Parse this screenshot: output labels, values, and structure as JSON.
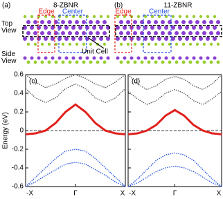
{
  "panels": [
    {
      "label": "(a)",
      "title": "8-ZBNR"
    },
    {
      "label": "(b)",
      "title": "11-ZBNR"
    }
  ],
  "labels": {
    "edge": "Edge",
    "center": "Center",
    "top_view": "Top\nView",
    "side_view": "Side\nView",
    "unit_cell": "Unit Cell"
  },
  "chart_data": [
    {
      "type": "band",
      "title": "(c)",
      "y_label": "Energy (eV)",
      "x": [
        -1,
        -0.8,
        -0.6,
        -0.4,
        -0.2,
        0,
        0.2,
        0.4,
        0.6,
        0.8,
        1
      ],
      "xlim": [
        -1,
        1
      ],
      "xticks": [
        {
          "value": -1,
          "label": "-X"
        },
        {
          "value": 0,
          "label": "Γ"
        },
        {
          "value": 1,
          "label": "X"
        }
      ],
      "ylim": [
        -0.6,
        0.6
      ],
      "yticks": [
        0.6,
        0.4,
        0.2,
        0.0,
        -0.2,
        -0.4,
        -0.6
      ],
      "series": [
        {
          "color": "#e0201c",
          "values": [
            -0.04,
            -0.03,
            0.0,
            0.08,
            0.2,
            0.28,
            0.2,
            0.08,
            0.0,
            -0.03,
            -0.04
          ]
        },
        {
          "color": "#2050e0",
          "values": [
            -0.6,
            -0.5,
            -0.4,
            -0.3,
            -0.22,
            -0.2,
            -0.22,
            -0.3,
            -0.4,
            -0.5,
            -0.6
          ]
        },
        {
          "color": "#2050e0",
          "values": [
            -0.6,
            -0.55,
            -0.48,
            -0.42,
            -0.36,
            -0.34,
            -0.36,
            -0.42,
            -0.48,
            -0.55,
            -0.6
          ]
        },
        {
          "color": "#555555",
          "values": [
            0.45,
            0.35,
            0.3,
            0.35,
            0.45,
            0.5,
            0.45,
            0.35,
            0.3,
            0.35,
            0.45
          ]
        },
        {
          "color": "#555555",
          "values": [
            0.6,
            0.52,
            0.46,
            0.5,
            0.56,
            0.6,
            0.56,
            0.5,
            0.46,
            0.52,
            0.6
          ]
        }
      ]
    },
    {
      "type": "band",
      "title": "(d)",
      "x": [
        -1,
        -0.8,
        -0.6,
        -0.4,
        -0.2,
        0,
        0.2,
        0.4,
        0.6,
        0.8,
        1
      ],
      "xlim": [
        -1,
        1
      ],
      "xticks": [
        {
          "value": -1,
          "label": "-X"
        },
        {
          "value": 0,
          "label": "Γ"
        },
        {
          "value": 1,
          "label": "X"
        }
      ],
      "ylim": [
        -0.6,
        0.6
      ],
      "yticks": [
        0.6,
        0.4,
        0.2,
        0.0,
        -0.2,
        -0.4,
        -0.6
      ],
      "series": [
        {
          "color": "#e0201c",
          "values": [
            -0.04,
            -0.03,
            0.0,
            0.06,
            0.16,
            0.22,
            0.16,
            0.06,
            0.0,
            -0.03,
            -0.04
          ]
        },
        {
          "color": "#2050e0",
          "values": [
            -0.6,
            -0.52,
            -0.42,
            -0.32,
            -0.26,
            -0.24,
            -0.26,
            -0.32,
            -0.42,
            -0.52,
            -0.6
          ]
        },
        {
          "color": "#2050e0",
          "values": [
            -0.6,
            -0.56,
            -0.5,
            -0.44,
            -0.4,
            -0.38,
            -0.4,
            -0.44,
            -0.5,
            -0.56,
            -0.6
          ]
        },
        {
          "color": "#555555",
          "values": [
            0.42,
            0.34,
            0.28,
            0.32,
            0.4,
            0.44,
            0.4,
            0.32,
            0.28,
            0.34,
            0.42
          ]
        },
        {
          "color": "#555555",
          "values": [
            0.6,
            0.5,
            0.44,
            0.48,
            0.55,
            0.58,
            0.55,
            0.48,
            0.44,
            0.5,
            0.6
          ]
        }
      ]
    }
  ]
}
